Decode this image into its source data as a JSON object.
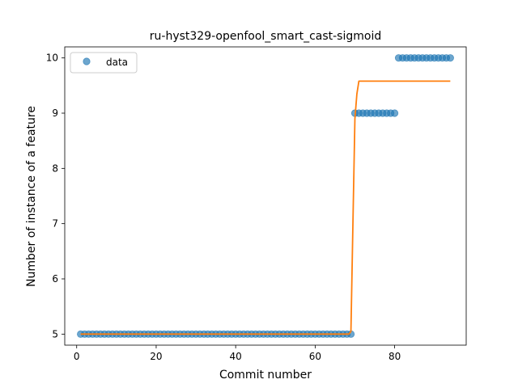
{
  "chart_data": {
    "type": "scatter",
    "title": "ru-hyst329-openfool_smart_cast-sigmoid",
    "xlabel": "Commit number",
    "ylabel": "Number of instance of a feature",
    "xlim": [
      -3,
      98
    ],
    "ylim": [
      4.8,
      10.2
    ],
    "xticks": [
      0,
      20,
      40,
      60,
      80
    ],
    "yticks": [
      5,
      6,
      7,
      8,
      9,
      10
    ],
    "legend": {
      "position": "upper-left",
      "entries": [
        "data"
      ]
    },
    "series": [
      {
        "name": "data",
        "kind": "scatter",
        "color": "#1f77b4",
        "x": [
          1,
          2,
          3,
          4,
          5,
          6,
          7,
          8,
          9,
          10,
          11,
          12,
          13,
          14,
          15,
          16,
          17,
          18,
          19,
          20,
          21,
          22,
          23,
          24,
          25,
          26,
          27,
          28,
          29,
          30,
          31,
          32,
          33,
          34,
          35,
          36,
          37,
          38,
          39,
          40,
          41,
          42,
          43,
          44,
          45,
          46,
          47,
          48,
          49,
          50,
          51,
          52,
          53,
          54,
          55,
          56,
          57,
          58,
          59,
          60,
          61,
          62,
          63,
          64,
          65,
          66,
          67,
          68,
          69,
          70,
          71,
          72,
          73,
          74,
          75,
          76,
          77,
          78,
          79,
          80,
          81,
          82,
          83,
          84,
          85,
          86,
          87,
          88,
          89,
          90,
          91,
          92,
          93,
          94
        ],
        "y": [
          5,
          5,
          5,
          5,
          5,
          5,
          5,
          5,
          5,
          5,
          5,
          5,
          5,
          5,
          5,
          5,
          5,
          5,
          5,
          5,
          5,
          5,
          5,
          5,
          5,
          5,
          5,
          5,
          5,
          5,
          5,
          5,
          5,
          5,
          5,
          5,
          5,
          5,
          5,
          5,
          5,
          5,
          5,
          5,
          5,
          5,
          5,
          5,
          5,
          5,
          5,
          5,
          5,
          5,
          5,
          5,
          5,
          5,
          5,
          5,
          5,
          5,
          5,
          5,
          5,
          5,
          5,
          5,
          5,
          9,
          9,
          9,
          9,
          9,
          9,
          9,
          9,
          9,
          9,
          9,
          10,
          10,
          10,
          10,
          10,
          10,
          10,
          10,
          10,
          10,
          10,
          10,
          10,
          10
        ]
      },
      {
        "kind": "line",
        "color": "#ff7f0e",
        "x": [
          1,
          68.5,
          69,
          69.5,
          70,
          70.5,
          71,
          94
        ],
        "y": [
          5.0,
          5.0,
          5.05,
          7.0,
          8.9,
          9.35,
          9.58,
          9.58
        ]
      }
    ]
  }
}
